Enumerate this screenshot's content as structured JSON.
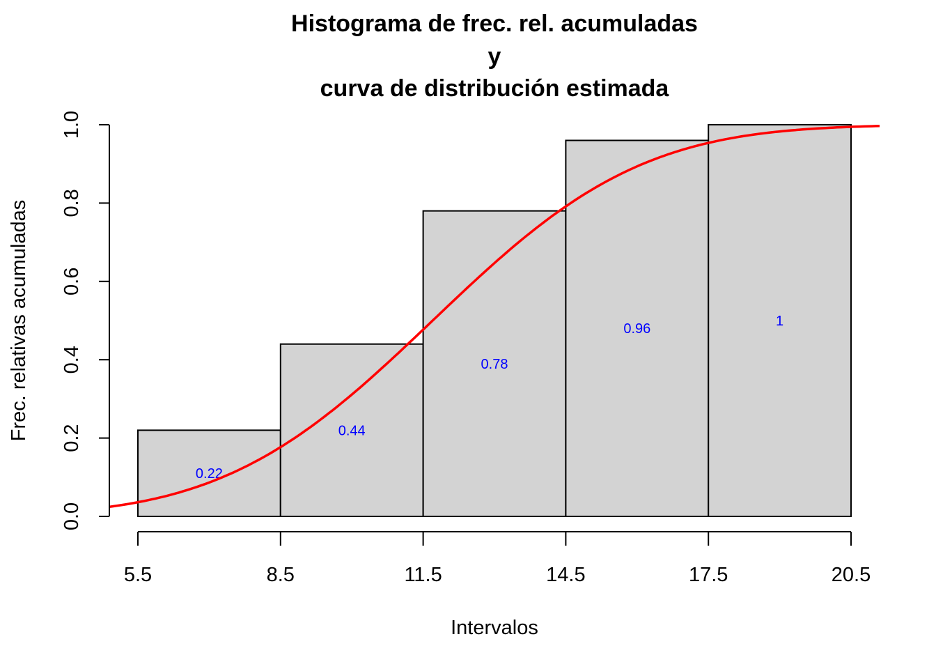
{
  "chart_data": {
    "type": "bar",
    "title_lines": [
      "Histograma de frec. rel. acumuladas",
      "y",
      "curva de distribución estimada"
    ],
    "title": "Histograma de frec. rel. acumuladas y curva de distribución estimada",
    "xlabel": "Intervalos",
    "ylabel": "Frec. relativas acumuladas",
    "breaks": [
      5.5,
      8.5,
      11.5,
      14.5,
      17.5,
      20.5
    ],
    "categories": [
      "5.5-8.5",
      "8.5-11.5",
      "11.5-14.5",
      "14.5-17.5",
      "17.5-20.5"
    ],
    "values": [
      0.22,
      0.44,
      0.78,
      0.96,
      1.0
    ],
    "bar_labels": [
      "0.22",
      "0.44",
      "0.78",
      "0.96",
      "1"
    ],
    "xticks": [
      "5.5",
      "8.5",
      "11.5",
      "14.5",
      "17.5",
      "20.5"
    ],
    "yticks": [
      "0.0",
      "0.2",
      "0.4",
      "0.6",
      "0.8",
      "1.0"
    ],
    "ylim": [
      0,
      1
    ],
    "xlim": [
      4.9,
      21.1
    ],
    "grid": false,
    "legend": null,
    "series": [
      {
        "name": "Frec. relativas acumuladas",
        "type": "bar",
        "values": [
          0.22,
          0.44,
          0.78,
          0.96,
          1.0
        ],
        "color": "#d3d3d3"
      },
      {
        "name": "Curva de distribución estimada",
        "type": "line",
        "color": "#ff0000",
        "x": [
          4.9,
          5.5,
          7.0,
          8.5,
          10.0,
          11.5,
          13.0,
          14.5,
          16.0,
          17.5,
          19.0,
          20.5,
          21.1
        ],
        "y": [
          0.027,
          0.048,
          0.12,
          0.222,
          0.34,
          0.482,
          0.64,
          0.772,
          0.87,
          0.938,
          0.975,
          0.993,
          0.997
        ]
      }
    ]
  },
  "colors": {
    "bar_fill": "#d3d3d3",
    "bar_stroke": "#000000",
    "curve": "#ff0000",
    "bar_label": "#0000ff"
  }
}
